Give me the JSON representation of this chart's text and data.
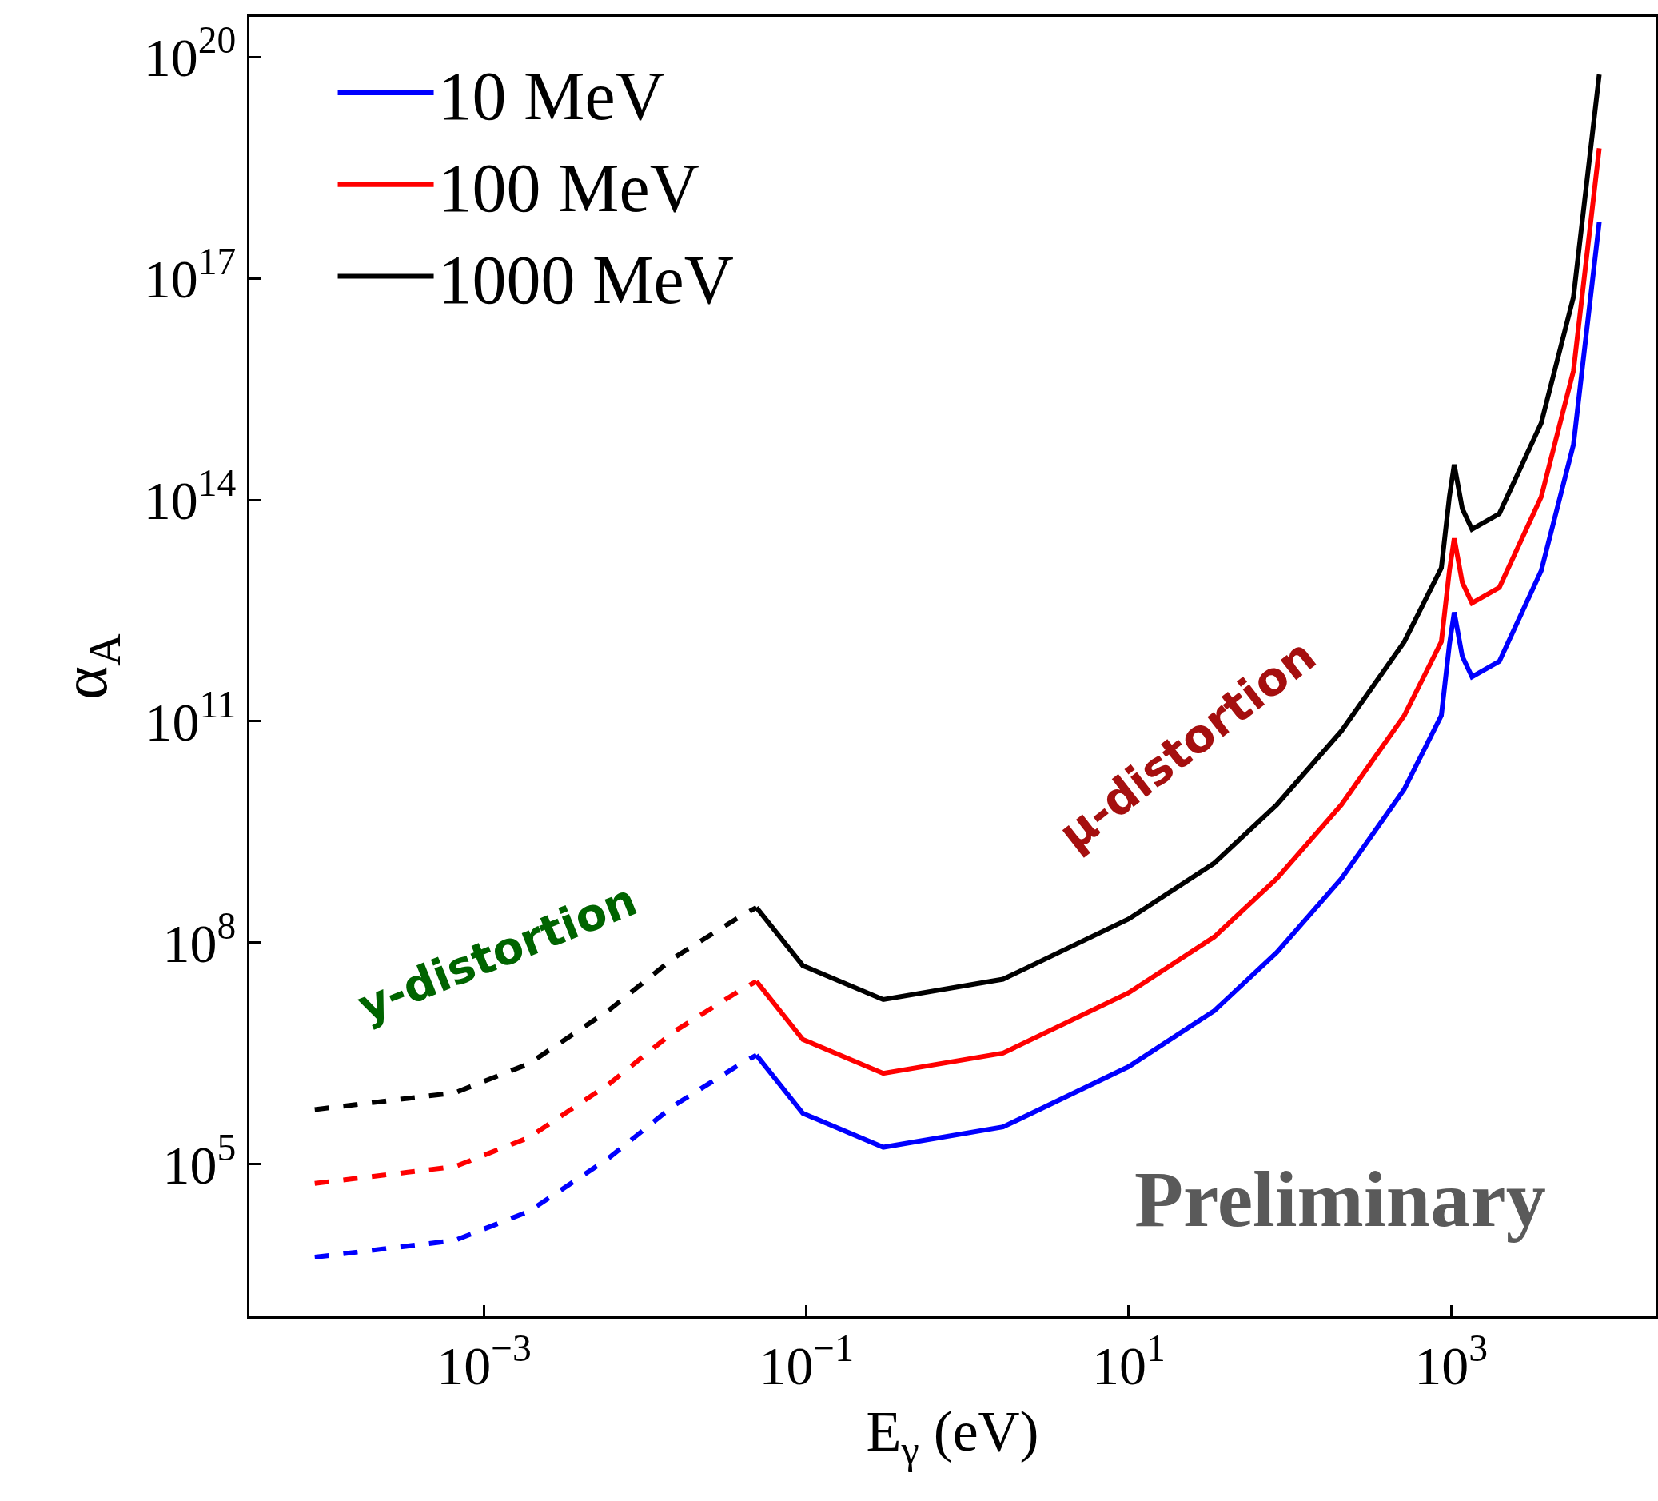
{
  "chart_data": {
    "type": "line",
    "xlabel": "E$_{γ}$ (eV)",
    "ylabel": "α$_{A}$",
    "log": "xy",
    "grid": false,
    "legend": "top left",
    "xlim": [
      3.5e-05,
      18600.0
    ],
    "ylim": [
      870,
      3.5e+20
    ],
    "xticks": [
      {
        "value": 0.001,
        "label": "10$^{−3}$"
      },
      {
        "value": 0.1,
        "label": "10$^{−1}$"
      },
      {
        "value": 10,
        "label": "10$^{1}$"
      },
      {
        "value": 1000,
        "label": "10$^{3}$"
      }
    ],
    "yticks": [
      {
        "value": 100000.0,
        "label": "10$^{5}$"
      },
      {
        "value": 100000000.0,
        "label": "10$^{8}$"
      },
      {
        "value": 100000000000.0,
        "label": "10$^{11}$"
      },
      {
        "value": 100000000000000.0,
        "label": "10$^{14}$"
      },
      {
        "value": 1e+17,
        "label": "10$^{17}$"
      },
      {
        "value": 1e+20,
        "label": "10$^{20}$"
      }
    ],
    "series": [
      {
        "color": "#0000ff",
        "line_style": "dashed",
        "x": [
          8.9e-05,
          0.00066,
          0.0019,
          0.0059,
          0.015,
          0.038,
          0.049
        ],
        "values": [
          5500.0,
          9300.0,
          23000.0,
          120000.0,
          620000.0,
          2200000.0,
          3000000.0
        ]
      },
      {
        "name": "10 MeV",
        "color": "#0000ff",
        "line_style": "solid",
        "x": [
          0.049,
          0.095,
          0.3,
          1.66,
          10,
          34,
          83,
          209,
          513,
          871,
          977,
          1047,
          1175,
          1349,
          1995,
          3631,
          5754,
          8318
        ],
        "values": [
          3000000.0,
          490000.0,
          170000.0,
          320000.0,
          2100000.0,
          12000000.0,
          74000000.0,
          740000000.0,
          12000000000.0,
          120000000000.0,
          1100000000000.0,
          3000000000000.0,
          760000000000.0,
          400000000000.0,
          650000000000.0,
          11000000000000.0,
          560000000000000.0,
          5.8e+17
        ]
      },
      {
        "color": "#ff0000",
        "line_style": "dashed",
        "x": [
          8.9e-05,
          0.00066,
          0.0019,
          0.0059,
          0.015,
          0.038,
          0.049
        ],
        "values": [
          55000.0,
          93000.0,
          230000.0,
          1200000.0,
          6200000.0,
          22000000.0,
          30000000.0
        ]
      },
      {
        "name": "100 MeV",
        "color": "#ff0000",
        "line_style": "solid",
        "x": [
          0.049,
          0.095,
          0.3,
          1.66,
          10,
          34,
          83,
          209,
          513,
          871,
          977,
          1047,
          1175,
          1349,
          1995,
          3631,
          5754,
          8318
        ],
        "values": [
          30000000.0,
          4900000.0,
          1700000.0,
          3200000.0,
          21000000.0,
          120000000.0,
          740000000.0,
          7400000000.0,
          120000000000.0,
          1200000000000.0,
          11000000000000.0,
          30000000000000.0,
          7600000000000.0,
          4000000000000.0,
          6500000000000.0,
          110000000000000.0,
          5600000000000000.0,
          5.8e+18
        ]
      },
      {
        "color": "#000000",
        "line_style": "dashed",
        "x": [
          8.9e-05,
          0.00066,
          0.0019,
          0.0059,
          0.015,
          0.038,
          0.049
        ],
        "values": [
          550000.0,
          930000.0,
          2300000.0,
          12000000.0,
          62000000.0,
          220000000.0,
          300000000.0
        ]
      },
      {
        "name": "1000 MeV",
        "color": "#000000",
        "line_style": "solid",
        "x": [
          0.049,
          0.095,
          0.3,
          1.66,
          10,
          34,
          83,
          209,
          513,
          871,
          977,
          1047,
          1175,
          1349,
          1995,
          3631,
          5754,
          8318
        ],
        "values": [
          300000000.0,
          49000000.0,
          17000000.0,
          32000000.0,
          210000000.0,
          1200000000.0,
          7400000000.0,
          74000000000.0,
          1200000000000.0,
          12000000000000.0,
          110000000000000.0,
          300000000000000.0,
          76000000000000.0,
          40000000000000.0,
          65000000000000.0,
          1100000000000000.0,
          5.6e+16,
          5.8e+19
        ]
      }
    ],
    "annotations": [
      "y-distortion",
      "μ-distortion",
      "Preliminary"
    ]
  }
}
